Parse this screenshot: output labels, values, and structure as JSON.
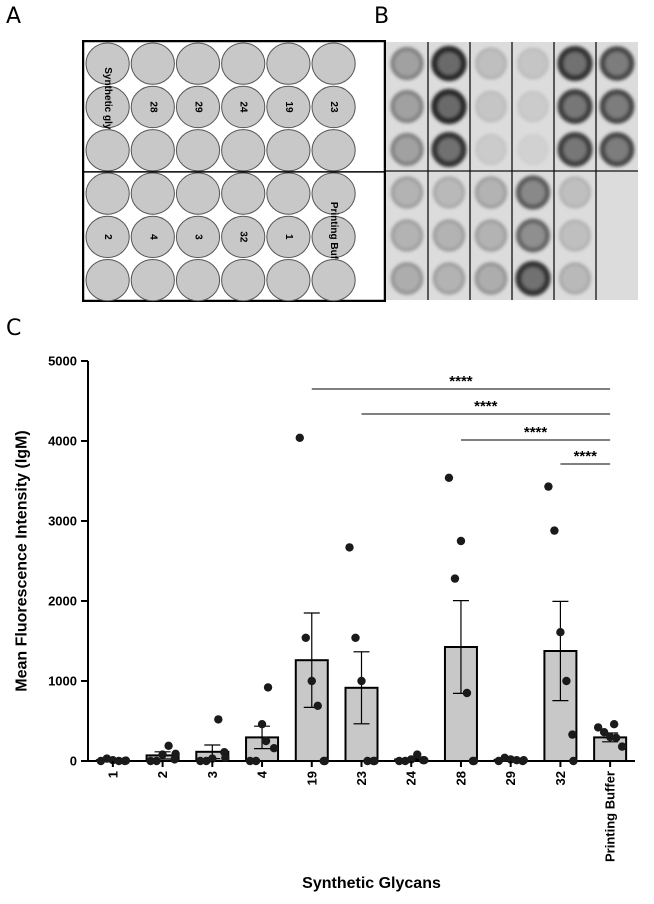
{
  "panels": {
    "a": "A",
    "b": "B",
    "c": "C"
  },
  "panel_a": {
    "rows": [
      [
        "",
        "",
        "",
        "",
        "",
        ""
      ],
      [
        "Synthetic glycan",
        "28",
        "29",
        "24",
        "19",
        "23"
      ],
      [
        "",
        "",
        "",
        "",
        "",
        ""
      ],
      [
        "",
        "",
        "",
        "",
        "",
        ""
      ],
      [
        "2",
        "4",
        "3",
        "32",
        "1",
        "Printing Buffer"
      ],
      [
        "",
        "",
        "",
        "",
        "",
        ""
      ]
    ],
    "colors": {
      "spot": "#c8c8c8",
      "spot_border": "#555555",
      "frame": "#000000"
    }
  },
  "panel_b": {
    "spots": [
      [
        0.45,
        0.9,
        0.2,
        0.15,
        0.85,
        0.75
      ],
      [
        0.45,
        0.9,
        0.15,
        0.1,
        0.8,
        0.75
      ],
      [
        0.45,
        0.85,
        0.1,
        0.05,
        0.8,
        0.75
      ],
      [
        0.3,
        0.25,
        0.3,
        0.65,
        0.2,
        0.0
      ],
      [
        0.3,
        0.3,
        0.3,
        0.6,
        0.2,
        0.0
      ],
      [
        0.35,
        0.3,
        0.35,
        0.85,
        0.25,
        0.0
      ]
    ]
  },
  "chart_data": {
    "type": "bar",
    "categories": [
      "1",
      "2",
      "3",
      "4",
      "19",
      "23",
      "24",
      "28",
      "29",
      "32",
      "Printing Buffer"
    ],
    "values": [
      10,
      70,
      115,
      295,
      1260,
      915,
      20,
      1425,
      15,
      1375,
      295
    ],
    "error": [
      10,
      45,
      85,
      140,
      590,
      450,
      15,
      580,
      10,
      620,
      55
    ],
    "points": [
      [
        0,
        30,
        10,
        0,
        0,
        5
      ],
      [
        0,
        0,
        80,
        190,
        20,
        90
      ],
      [
        0,
        0,
        30,
        520,
        110,
        40
      ],
      [
        0,
        0,
        460,
        920,
        160,
        250
      ],
      [
        4040,
        1540,
        1000,
        690,
        0,
        0
      ],
      [
        2670,
        1540,
        1000,
        0,
        0,
        0
      ],
      [
        0,
        0,
        20,
        80,
        10,
        10
      ],
      [
        3540,
        2280,
        2750,
        850,
        0,
        0
      ],
      [
        0,
        40,
        20,
        10,
        0,
        10
      ],
      [
        3430,
        2880,
        1610,
        1000,
        330,
        0
      ],
      [
        420,
        360,
        300,
        290,
        180,
        460
      ]
    ],
    "xlabel": "Synthetic Glycans",
    "ylabel": "Mean Fluorescence Intensity (IgM)",
    "ylim": [
      0,
      5000
    ],
    "yticks": [
      "0",
      "1000",
      "2000",
      "3000",
      "4000",
      "5000"
    ],
    "significance": [
      {
        "from": "19",
        "to": "Printing Buffer",
        "label": "****"
      },
      {
        "from": "23",
        "to": "Printing Buffer",
        "label": "****"
      },
      {
        "from": "28",
        "to": "Printing Buffer",
        "label": "****"
      },
      {
        "from": "32",
        "to": "Printing Buffer",
        "label": "****"
      }
    ],
    "colors": {
      "bar": "#c8c8c8",
      "edge": "#000000",
      "point": "#1a1a1a"
    }
  }
}
